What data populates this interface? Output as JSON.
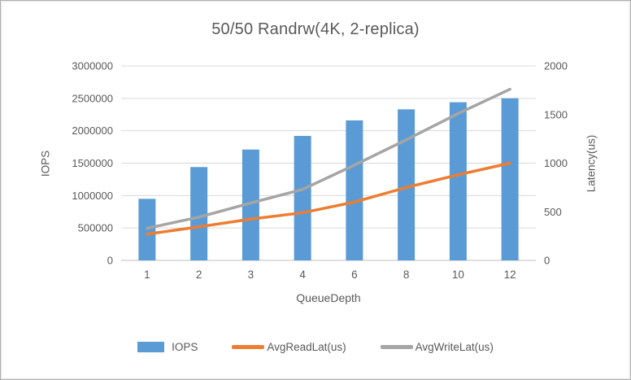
{
  "title": "50/50 Randrw(4K, 2-replica)",
  "chart_data": {
    "type": "combo",
    "categories": [
      "1",
      "2",
      "3",
      "4",
      "6",
      "8",
      "10",
      "12"
    ],
    "series": [
      {
        "name": "IOPS",
        "type": "bar",
        "axis": "left",
        "color": "#5b9bd5",
        "values": [
          950000,
          1440000,
          1710000,
          1920000,
          2160000,
          2330000,
          2440000,
          2500000
        ]
      },
      {
        "name": "AvgReadLat(us)",
        "type": "line",
        "axis": "right",
        "color": "#ed7d31",
        "values": [
          270,
          345,
          425,
          490,
          600,
          750,
          880,
          1000
        ]
      },
      {
        "name": "AvgWriteLat(us)",
        "type": "line",
        "axis": "right",
        "color": "#a5a5a5",
        "values": [
          330,
          445,
          590,
          730,
          980,
          1240,
          1510,
          1760
        ]
      }
    ],
    "xlabel": "QueueDepth",
    "left_axis": {
      "label": "IOPS",
      "min": 0,
      "max": 3000000,
      "step": 500000,
      "ticks": [
        "0",
        "500000",
        "1000000",
        "1500000",
        "2000000",
        "2500000",
        "3000000"
      ]
    },
    "right_axis": {
      "label": "Latency(us)",
      "min": 0,
      "max": 2000,
      "step": 500,
      "ticks": [
        "0",
        "500",
        "1000",
        "1500",
        "2000"
      ]
    },
    "grid": true,
    "legend_position": "bottom"
  },
  "colors": {
    "gridline": "#d9d9d9",
    "baseline": "#bfbfbf",
    "tick_text": "#595959",
    "title_text": "#595959"
  }
}
